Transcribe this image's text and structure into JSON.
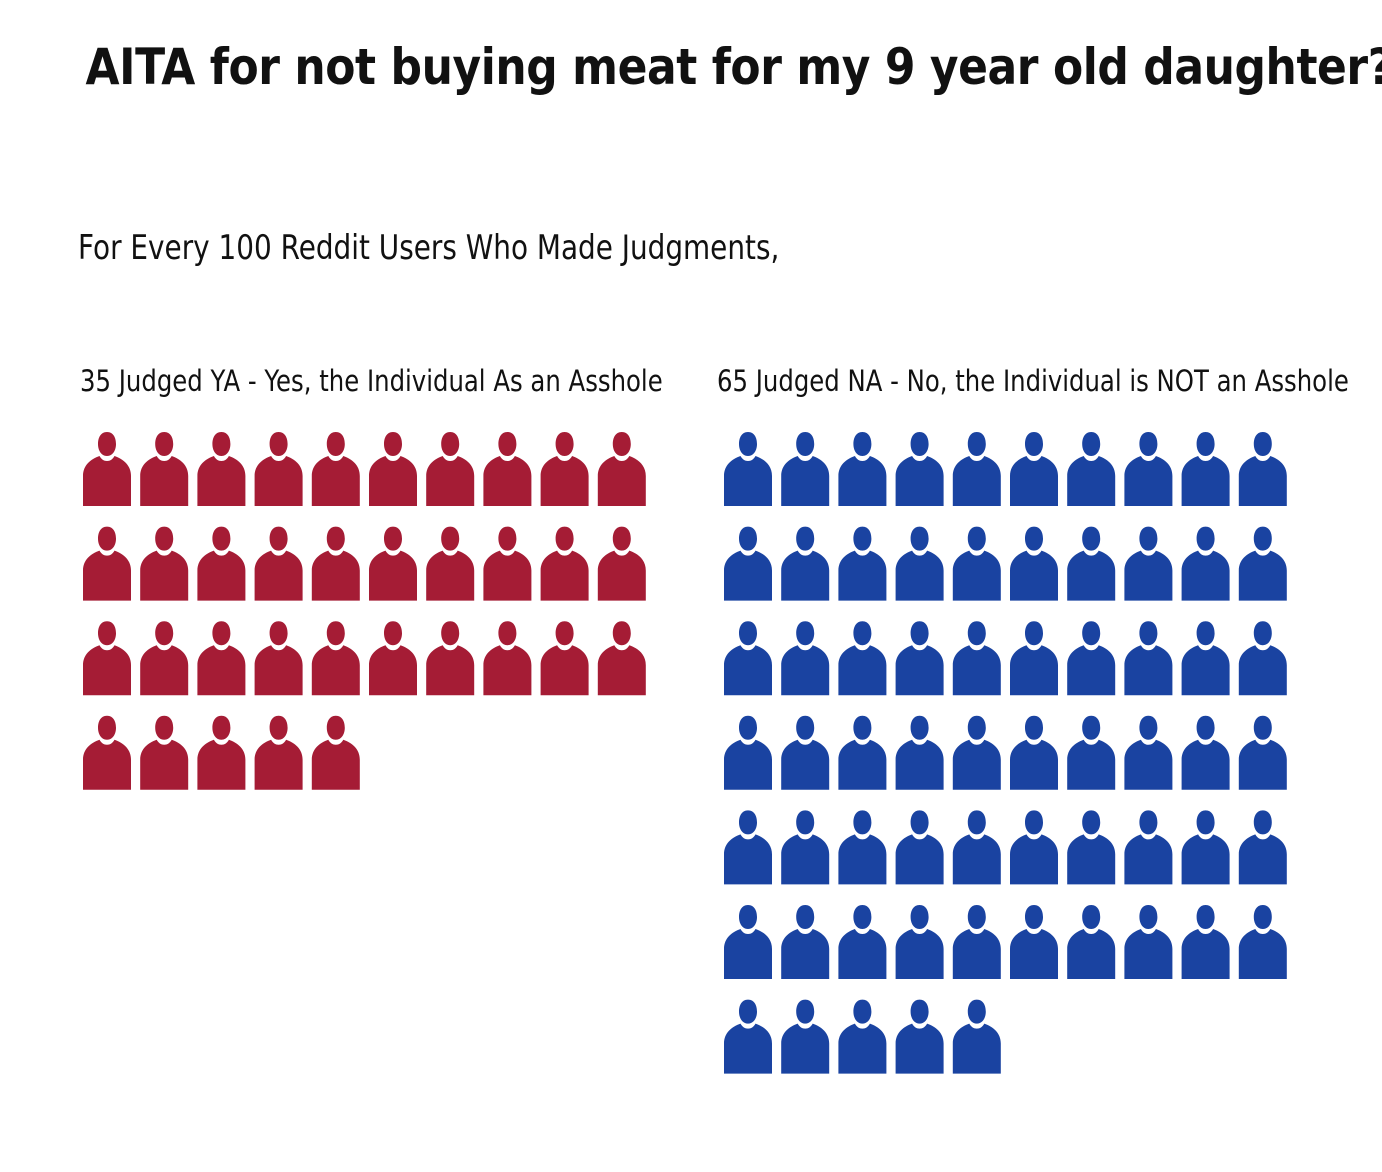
{
  "chart_data": {
    "type": "pictograph",
    "title": "AITA for not buying meat for my 9 year old daughter?",
    "subtitle": "For Every 100 Reddit Users Who Made Judgments,",
    "icon": "person-icon",
    "icons_per_row": 10,
    "groups": [
      {
        "key": "ya",
        "label": "35 Judged YA - Yes, the Individual As an Asshole",
        "value": 35,
        "color": "#a51c35"
      },
      {
        "key": "na",
        "label": "65 Judged NA - No, the Individual is NOT an Asshole",
        "value": 65,
        "color": "#1a43a1"
      }
    ]
  }
}
